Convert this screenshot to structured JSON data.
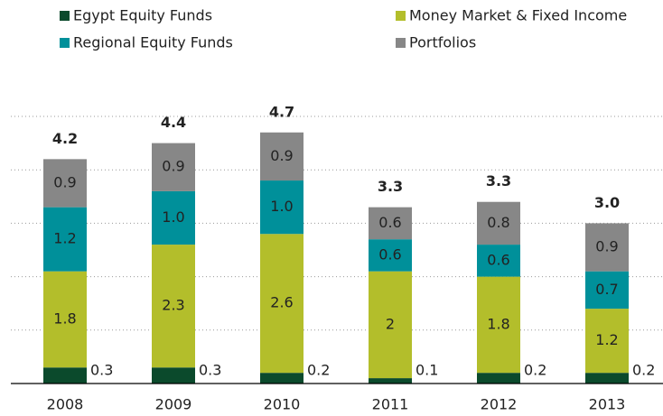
{
  "chart_data": {
    "type": "stacked_bar",
    "categories": [
      "2008",
      "2009",
      "2010",
      "2011",
      "2012",
      "2013"
    ],
    "series": [
      {
        "name": "Egypt Equity Funds",
        "color": "#0b4a2c",
        "values": [
          0.3,
          0.3,
          0.2,
          0.1,
          0.2,
          0.2
        ]
      },
      {
        "name": "Money Market & Fixed Income",
        "color": "#b3be2b",
        "values": [
          1.8,
          2.3,
          2.6,
          2.0,
          1.8,
          1.2
        ]
      },
      {
        "name": "Regional Equity Funds",
        "color": "#00909a",
        "values": [
          1.2,
          1.0,
          1.0,
          0.6,
          0.6,
          0.7
        ],
        "value_labels": [
          "1.2",
          "1.0",
          "1.0",
          "0.6",
          "0.6",
          "0.7"
        ]
      },
      {
        "name": "Portfolios",
        "color": "#878787",
        "values": [
          0.9,
          0.9,
          0.9,
          0.6,
          0.8,
          0.9
        ]
      }
    ],
    "totals": [
      4.2,
      4.4,
      4.7,
      3.3,
      3.3,
      {
        "value": 3.0,
        "label": "3.0"
      }
    ],
    "ylim": [
      0,
      5
    ],
    "yticks": [
      1,
      2,
      3,
      4,
      5
    ],
    "grid": true
  }
}
